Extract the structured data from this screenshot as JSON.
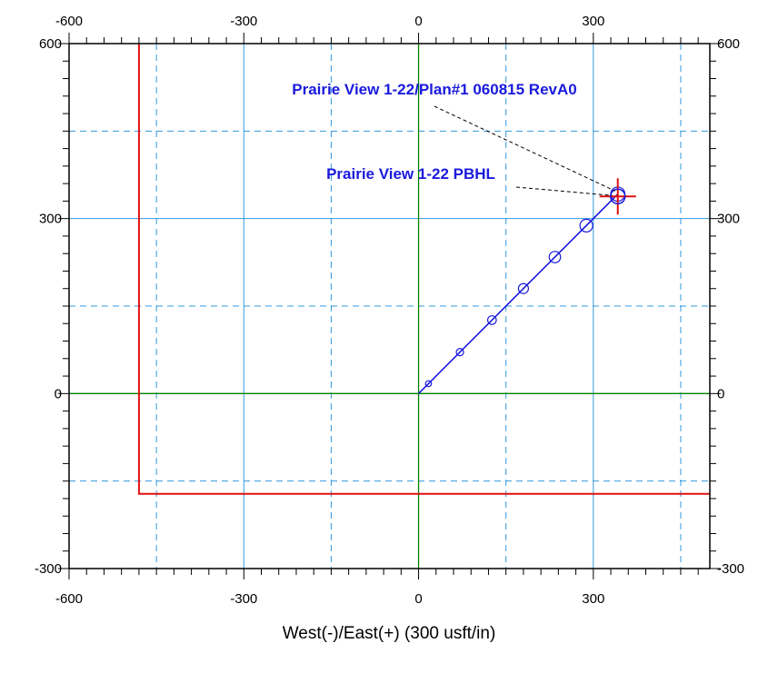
{
  "chart_data": {
    "type": "line",
    "title": "",
    "xlabel": "West(-)/East(+) (300 usft/in)",
    "ylabel": "",
    "xlim": [
      -600,
      500
    ],
    "ylim": [
      -300,
      600
    ],
    "x_ticks": [
      "-600",
      "-300",
      "0",
      "300"
    ],
    "y_ticks": [
      "-300",
      "0",
      "300",
      "600"
    ],
    "grid": true,
    "colors": {
      "well_path": "#1a1adc",
      "lease_line": "#e01010",
      "origin_axes": "#008000",
      "major_grid": "#3399dd",
      "minor_grid": "#3399dd",
      "target": "#e01010"
    },
    "series": [
      {
        "name": "Prairie View 1-22/Plan#1 060815 RevA0",
        "x": [
          0,
          17,
          71,
          126,
          180,
          234,
          288,
          342
        ],
        "y": [
          0,
          17,
          71,
          126,
          180,
          234,
          288,
          342
        ]
      }
    ],
    "lease_line": {
      "x": [
        -480,
        -480,
        500
      ],
      "y": [
        600,
        -172,
        -172
      ]
    },
    "target": {
      "name": "Prairie View 1-22 PBHL",
      "x": 342,
      "y": 338
    },
    "annotations": [
      {
        "text": "Prairie View 1-22/Plan#1 060815 RevA0",
        "points_to": [
          342,
          338
        ]
      },
      {
        "text": "Prairie View 1-22 PBHL",
        "points_to": [
          342,
          338
        ]
      }
    ]
  }
}
